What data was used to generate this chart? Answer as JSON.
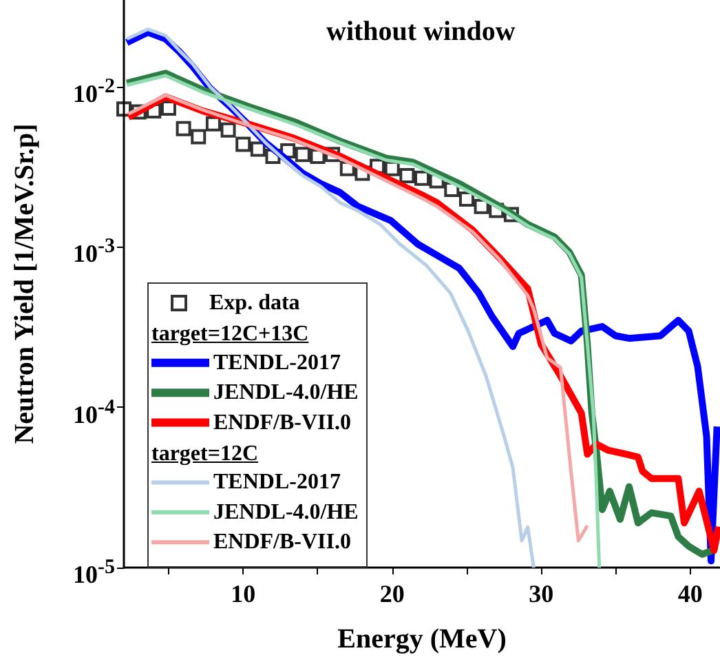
{
  "chart_data": {
    "type": "line",
    "title": "without window",
    "xlabel": "Energy (MeV)",
    "ylabel": "Neutron Yield [1/MeV.Sr.p]",
    "xlim": [
      2,
      42
    ],
    "xticks": [
      {
        "value": 5,
        "label": null
      },
      10,
      {
        "value": 15,
        "label": null
      },
      20,
      {
        "value": 25,
        "label": null
      },
      30,
      {
        "value": 35,
        "label": null
      },
      40
    ],
    "ylim": [
      1e-05,
      0.035
    ],
    "yticks": [
      {
        "value": 1e-05,
        "label": "10$^{-5}$"
      },
      {
        "value": 0.0001,
        "label": "10$^{-4}$"
      },
      {
        "value": 0.001,
        "label": "10$^{-3}$"
      },
      {
        "value": 0.01,
        "label": "10$^{-2}$"
      }
    ],
    "log": "y",
    "grid": false,
    "legend": "bottom left",
    "annotations": [
      "target=12C+13C",
      "target=12C"
    ],
    "series": [
      {
        "name": "Exp. data",
        "type": "scatter",
        "marker": "square",
        "color": "#000000",
        "x": [
          2,
          3,
          4,
          5,
          6,
          7,
          8,
          9,
          10,
          11,
          12,
          13,
          14,
          15,
          16,
          17,
          18,
          19,
          20,
          21,
          22,
          23,
          24,
          25,
          26,
          27,
          28
        ],
        "values": [
          0.0073,
          0.007,
          0.0071,
          0.0074,
          0.0055,
          0.0049,
          0.0059,
          0.0054,
          0.0044,
          0.0041,
          0.0037,
          0.004,
          0.0038,
          0.0037,
          0.0038,
          0.0031,
          0.0029,
          0.0032,
          0.0031,
          0.0028,
          0.0027,
          0.0026,
          0.0023,
          0.002,
          0.0018,
          0.0017,
          0.0016
        ]
      },
      {
        "name": "TENDL-2017",
        "color": "#0000ff",
        "x": [
          2.2,
          3.6,
          4.8,
          5.7,
          6.6,
          7.8,
          9.1,
          10.3,
          11.5,
          12.8,
          14.0,
          15.2,
          16.5,
          17.7,
          19.9,
          21.7,
          23.3,
          24.5,
          25.8,
          26.7,
          28.1,
          28.5,
          29.5,
          30.4,
          30.9,
          32.0,
          32.7,
          34.1,
          35.0,
          35.9,
          38.0,
          39.2,
          39.9,
          40.5,
          41.1,
          41.4,
          41.8
        ],
        "values": [
          0.019,
          0.022,
          0.02,
          0.0167,
          0.0135,
          0.0098,
          0.0076,
          0.0059,
          0.0045,
          0.0036,
          0.0029,
          0.0025,
          0.0022,
          0.0018,
          0.00147,
          0.00105,
          0.00086,
          0.00074,
          0.00052,
          0.00037,
          0.00024,
          0.00029,
          0.00032,
          0.00035,
          0.00029,
          0.00026,
          0.0003,
          0.00032,
          0.00028,
          0.00027,
          0.00028,
          0.00035,
          0.0003,
          0.00018,
          6.6e-05,
          1.1e-05,
          7.6e-05
        ]
      },
      {
        "name": "JENDL-4.0/HE",
        "color": "#2e7d46",
        "x": [
          2.2,
          4.8,
          7.3,
          10.3,
          13.4,
          16.5,
          19.6,
          21.4,
          24.5,
          27.6,
          29.1,
          30.9,
          31.9,
          32.7,
          33.1,
          33.4,
          33.7,
          34.1,
          34.6,
          35.3,
          35.9,
          36.5,
          37.4,
          38.7,
          39.2,
          39.9,
          40.8,
          41.5
        ],
        "values": [
          0.0106,
          0.0122,
          0.0096,
          0.0076,
          0.0061,
          0.0046,
          0.0036,
          0.0034,
          0.0025,
          0.00172,
          0.00139,
          0.00116,
          0.00093,
          0.00067,
          0.000248,
          9.2e-05,
          5.4e-05,
          2.3e-05,
          3e-05,
          2e-05,
          3.2e-05,
          1.9e-05,
          2.2e-05,
          2.1e-05,
          1.56e-05,
          1.36e-05,
          1.21e-05,
          1.28e-05
        ]
      },
      {
        "name": "ENDF/B-VII.0",
        "color": "#ff0000",
        "x": [
          2.3,
          4.8,
          7.3,
          10.3,
          13.4,
          16.5,
          19.6,
          22.1,
          23.0,
          25.4,
          27.2,
          29.1,
          30.0,
          31.3,
          32.7,
          33.1,
          33.7,
          34.5,
          35.7,
          36.5,
          36.8,
          37.4,
          39.2,
          39.6,
          40.6,
          41.6,
          41.9
        ],
        "values": [
          0.0065,
          0.0087,
          0.0071,
          0.0059,
          0.0048,
          0.0037,
          0.0027,
          0.0021,
          0.0019,
          0.00128,
          0.00086,
          0.00055,
          0.000248,
          0.000157,
          9.2e-05,
          5.1e-05,
          5.9e-05,
          5.4e-05,
          5.1e-05,
          4.9e-05,
          4e-05,
          3.6e-05,
          3.6e-05,
          1.9e-05,
          3e-05,
          1.28e-05,
          1.8e-05
        ]
      },
      {
        "name": "TENDL-2017",
        "color": "#b8cfe8",
        "x": [
          2.2,
          3.6,
          4.8,
          5.7,
          6.6,
          7.8,
          9.1,
          10.3,
          11.5,
          12.8,
          14.0,
          15.2,
          16.5,
          17.7,
          19.2,
          20.5,
          22.3,
          23.9,
          25.1,
          26.3,
          27.6,
          28.1,
          28.7,
          29.1,
          29.5
        ],
        "values": [
          0.02,
          0.023,
          0.021,
          0.017,
          0.014,
          0.01,
          0.0077,
          0.0059,
          0.0045,
          0.0035,
          0.0028,
          0.0024,
          0.0019,
          0.00169,
          0.00139,
          0.00105,
          0.00077,
          0.00052,
          0.0003,
          0.000157,
          6.2e-05,
          4.2e-05,
          1.47e-05,
          1.79e-05,
          1e-05
        ]
      },
      {
        "name": "JENDL-4.0/HE",
        "color": "#90dcb0",
        "x": [
          2.2,
          4.8,
          7.3,
          10.3,
          13.4,
          16.5,
          19.6,
          21.4,
          24.5,
          27.6,
          29.1,
          30.9,
          31.9,
          32.7,
          33.1,
          33.5,
          33.7,
          33.9
        ],
        "values": [
          0.0103,
          0.0118,
          0.0093,
          0.0074,
          0.0059,
          0.0045,
          0.0035,
          0.0033,
          0.0024,
          0.00168,
          0.00136,
          0.00113,
          0.00091,
          0.00065,
          0.00025,
          9.2e-05,
          3.4e-05,
          1e-05
        ]
      },
      {
        "name": "ENDF/B-VII.0",
        "color": "#f4a8a8",
        "x": [
          2.3,
          4.8,
          7.3,
          10.3,
          13.4,
          16.5,
          19.6,
          22.1,
          23.0,
          25.4,
          27.2,
          29.1,
          29.5,
          30.4,
          31.3,
          32.0,
          32.5,
          33.1
        ],
        "values": [
          0.0068,
          0.0089,
          0.0072,
          0.0058,
          0.0047,
          0.0036,
          0.0026,
          0.002,
          0.0018,
          0.00125,
          0.00084,
          0.0005,
          0.00041,
          0.000204,
          0.000177,
          4e-05,
          1.47e-05,
          1.83e-05
        ]
      }
    ]
  }
}
